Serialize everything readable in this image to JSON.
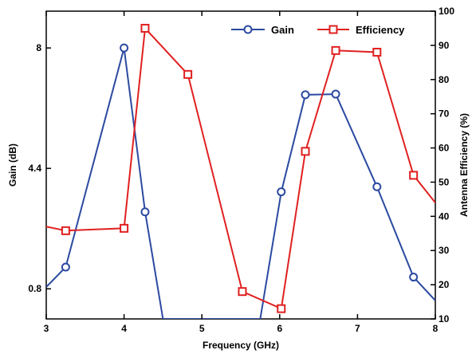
{
  "chart_data": {
    "type": "line",
    "xlabel": "Frequency (GHz)",
    "ylabel_left": "Gain (dB)",
    "ylabel_right": "Antenna Efficiency (%)",
    "xlim": [
      3,
      8
    ],
    "ylim_left": [
      -0.1,
      9.1
    ],
    "ylim_right": [
      10,
      100
    ],
    "x_ticks": [
      3,
      4,
      5,
      6,
      7,
      8
    ],
    "y_left_ticks": [
      "0.8",
      "4.4",
      "8"
    ],
    "y_right_ticks": [
      "10",
      "20",
      "30",
      "40",
      "50",
      "60",
      "70",
      "80",
      "90",
      "100"
    ],
    "legend_position": "top-right",
    "grid": false,
    "series": [
      {
        "name": "Gain",
        "axis": "left",
        "color": "#2b4aa0",
        "marker": "circle",
        "x": [
          3.0,
          3.25,
          4.0,
          4.27,
          4.5,
          5.75,
          6.02,
          6.33,
          6.72,
          7.25,
          7.72,
          8.0
        ],
        "y": [
          0.85,
          1.45,
          8.0,
          3.1,
          -0.1,
          -0.1,
          3.7,
          6.6,
          6.62,
          3.85,
          1.15,
          0.45
        ]
      },
      {
        "name": "Efficiency",
        "axis": "right",
        "color": "#e02020",
        "marker": "square",
        "x": [
          3.0,
          3.25,
          4.0,
          4.27,
          4.82,
          5.52,
          6.02,
          6.33,
          6.72,
          7.25,
          7.72,
          8.0
        ],
        "y": [
          37,
          35.8,
          36.5,
          95,
          81.5,
          18,
          13,
          59,
          88.5,
          88,
          52,
          44
        ]
      }
    ]
  }
}
